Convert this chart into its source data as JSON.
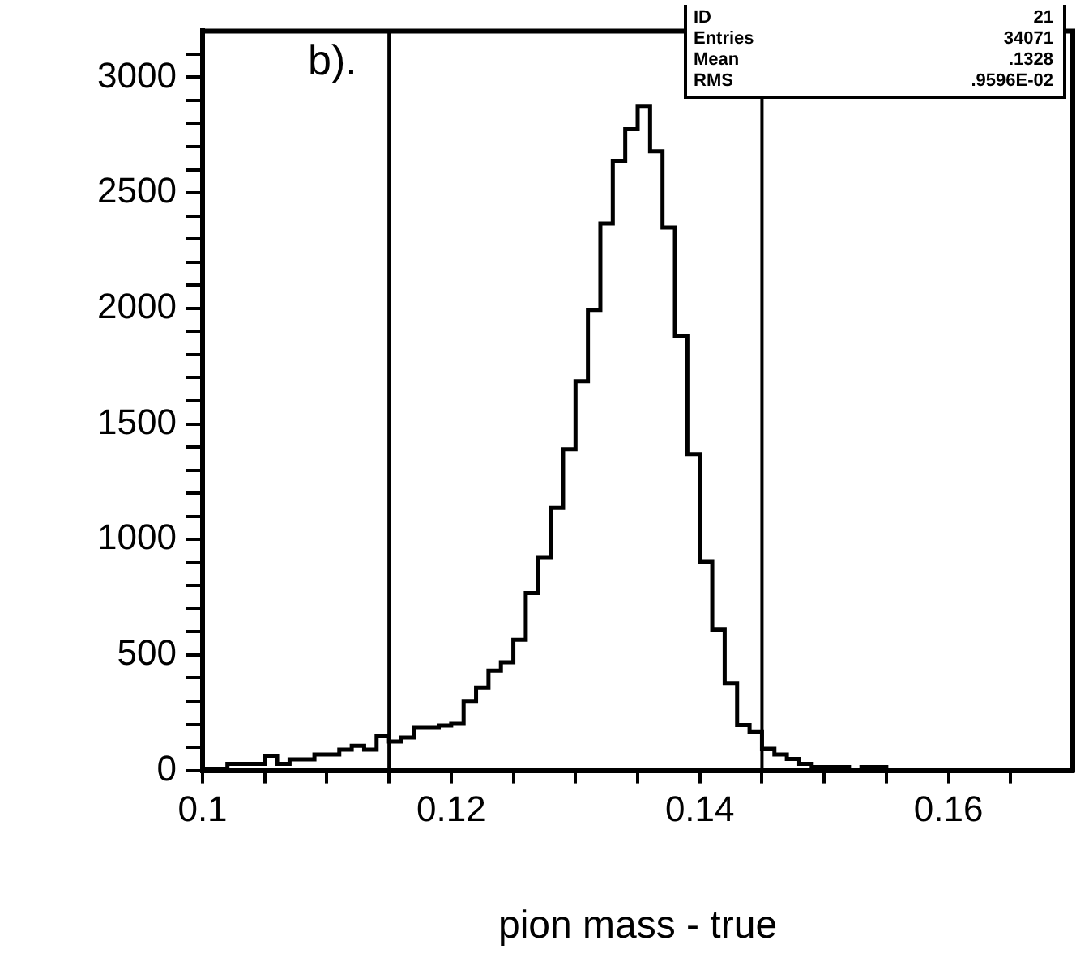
{
  "chart_data": {
    "type": "histogram",
    "xlabel": "pion mass - true",
    "bins": [
      0.1,
      0.101,
      0.102,
      0.103,
      0.104,
      0.105,
      0.106,
      0.107,
      0.108,
      0.109,
      0.11,
      0.111,
      0.112,
      0.113,
      0.114,
      0.115,
      0.116,
      0.117,
      0.118,
      0.119,
      0.12,
      0.121,
      0.122,
      0.123,
      0.124,
      0.125,
      0.126,
      0.127,
      0.128,
      0.129,
      0.13,
      0.131,
      0.132,
      0.133,
      0.134,
      0.135,
      0.136,
      0.137,
      0.138,
      0.139,
      0.14,
      0.141,
      0.142,
      0.143,
      0.144,
      0.145,
      0.146,
      0.147,
      0.148,
      0.149,
      0.15,
      0.151,
      0.152,
      0.153,
      0.154,
      0.155,
      0.156,
      0.157,
      0.158,
      0.159,
      0.16,
      0.161,
      0.162,
      0.163,
      0.164,
      0.165,
      0.166,
      0.167,
      0.168,
      0.169,
      0.17
    ],
    "values": [
      7,
      7,
      28,
      28,
      28,
      63,
      28,
      48,
      48,
      69,
      69,
      90,
      106,
      90,
      149,
      125,
      142,
      184,
      184,
      195,
      202,
      301,
      359,
      432,
      468,
      565,
      768,
      920,
      1137,
      1391,
      1685,
      1993,
      2367,
      2639,
      2776,
      2873,
      2680,
      2350,
      1879,
      1370,
      903,
      609,
      378,
      197,
      166,
      93,
      69,
      49,
      28,
      14,
      14,
      14,
      0,
      14,
      14,
      0,
      0,
      0,
      0,
      0,
      0,
      0,
      0,
      0,
      0,
      0,
      0,
      0,
      0,
      0
    ],
    "color": "#000000",
    "xlim": [
      0.1,
      0.17
    ],
    "xticks": [
      0.1,
      {
        "value": 0.105,
        "label": null
      },
      {
        "value": 0.11,
        "label": null
      },
      {
        "value": 0.115,
        "label": null
      },
      0.12,
      {
        "value": 0.125,
        "label": null
      },
      {
        "value": 0.13,
        "label": null
      },
      {
        "value": 0.135,
        "label": null
      },
      0.14,
      {
        "value": 0.145,
        "label": null
      },
      {
        "value": 0.15,
        "label": null
      },
      {
        "value": 0.155,
        "label": null
      },
      0.16,
      {
        "value": 0.165,
        "label": null
      }
    ],
    "ylim": [
      0,
      3200
    ],
    "yticks": [
      0,
      {
        "value": 100,
        "label": null
      },
      {
        "value": 200,
        "label": null
      },
      {
        "value": 300,
        "label": null
      },
      {
        "value": 400,
        "label": null
      },
      500,
      {
        "value": 600,
        "label": null
      },
      {
        "value": 700,
        "label": null
      },
      {
        "value": 800,
        "label": null
      },
      {
        "value": 900,
        "label": null
      },
      1000,
      {
        "value": 1100,
        "label": null
      },
      {
        "value": 1200,
        "label": null
      },
      {
        "value": 1300,
        "label": null
      },
      {
        "value": 1400,
        "label": null
      },
      1500,
      {
        "value": 1600,
        "label": null
      },
      {
        "value": 1700,
        "label": null
      },
      {
        "value": 1800,
        "label": null
      },
      {
        "value": 1900,
        "label": null
      },
      2000,
      {
        "value": 2100,
        "label": null
      },
      {
        "value": 2200,
        "label": null
      },
      {
        "value": 2300,
        "label": null
      },
      {
        "value": 2400,
        "label": null
      },
      2500,
      {
        "value": 2600,
        "label": null
      },
      {
        "value": 2700,
        "label": null
      },
      {
        "value": 2800,
        "label": null
      },
      {
        "value": 2900,
        "label": null
      },
      3000,
      {
        "value": 3100,
        "label": null
      }
    ],
    "ref_lines": [
      {
        "axis": "x",
        "value": 0.115,
        "color": "#000000"
      },
      {
        "axis": "x",
        "value": 0.145,
        "color": "#000000"
      }
    ],
    "annotations": [
      "b).",
      "ID",
      "21",
      "Entries",
      "34071",
      "Mean",
      ".1328",
      "RMS",
      ".9596E-02"
    ],
    "grid": false,
    "legend": false
  }
}
